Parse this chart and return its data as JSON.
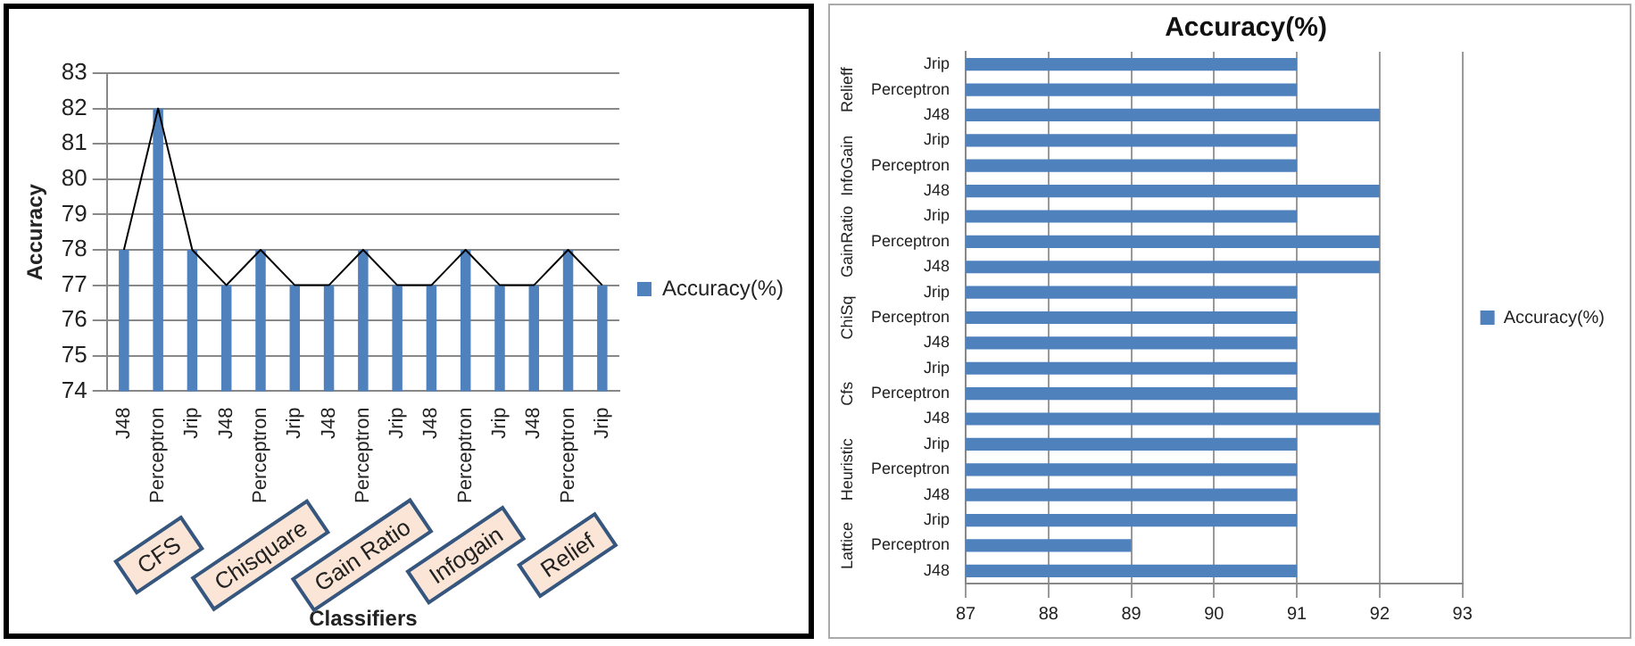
{
  "chart_data": [
    {
      "type": "bar",
      "xlabel": "Classifiers",
      "ylabel": "Accuracy",
      "categories": [
        "J48",
        "Perceptron",
        "Jrip",
        "J48",
        "Perceptron",
        "Jrip",
        "J48",
        "Perceptron",
        "Jrip",
        "J48",
        "Perceptron",
        "Jrip",
        "J48",
        "Perceptron",
        "Jrip"
      ],
      "series": [
        {
          "name": "Accuracy(%)",
          "color": "#4f81bd",
          "values": [
            78,
            82,
            78,
            77,
            78,
            77,
            77,
            78,
            77,
            77,
            78,
            77,
            77,
            78,
            77
          ]
        },
        {
          "type": "line",
          "color": "#000000",
          "values": [
            78,
            82,
            78,
            77,
            78,
            77,
            77,
            78,
            77,
            77,
            78,
            77,
            77,
            78,
            77
          ]
        }
      ],
      "ylim": [
        74,
        83
      ],
      "yticks": [
        74,
        75,
        76,
        77,
        78,
        79,
        80,
        81,
        82,
        83
      ],
      "grid": "y",
      "legend": "right",
      "marker": "none",
      "annotations": [
        "CFS",
        "Chisquare",
        "Gain Ratio",
        "Infogain",
        "Relief"
      ]
    },
    {
      "type": "bar",
      "orientation": "horizontal",
      "title": "Accuracy(%)",
      "categories": [
        "Jrip",
        "Perceptron",
        "J48",
        "Jrip",
        "Perceptron",
        "J48",
        "Jrip",
        "Perceptron",
        "J48",
        "Jrip",
        "Perceptron",
        "J48",
        "Jrip",
        "Perceptron",
        "J48",
        "Jrip",
        "Perceptron",
        "J48",
        "Jrip",
        "Perceptron",
        "J48"
      ],
      "series": [
        {
          "name": "Accuracy(%)",
          "color": "#4f81bd",
          "values": [
            91,
            91,
            92,
            91,
            91,
            92,
            91,
            92,
            92,
            91,
            91,
            91,
            91,
            91,
            92,
            91,
            91,
            91,
            91,
            89,
            91
          ]
        }
      ],
      "xlim": [
        87,
        93
      ],
      "xticks": [
        87,
        88,
        89,
        90,
        91,
        92,
        93
      ],
      "grid": "x",
      "legend": "right",
      "annotations": [
        "Relieff",
        "InfoGain",
        "GainRatio",
        "ChiSq",
        "Cfs",
        "Heuristic",
        "Lattice"
      ]
    }
  ]
}
